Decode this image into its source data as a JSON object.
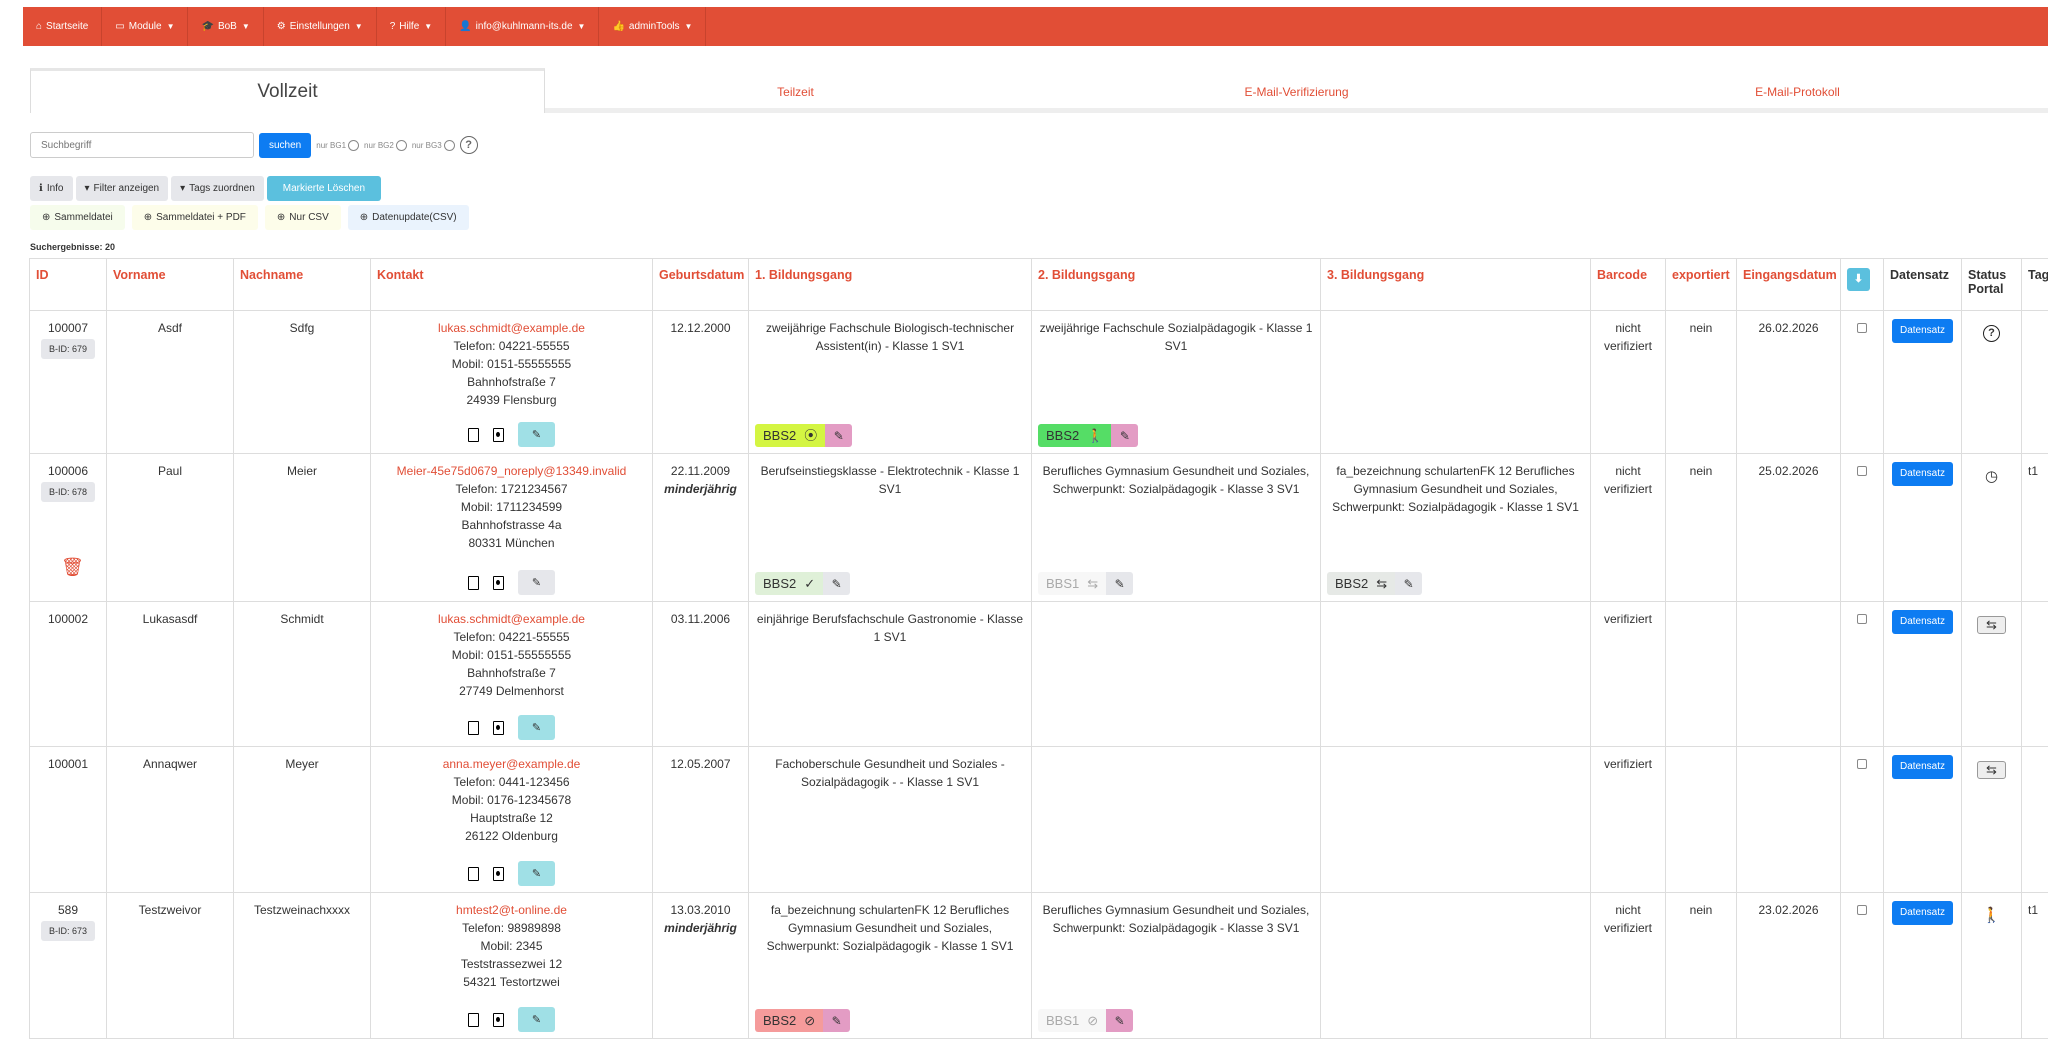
{
  "nav": [
    {
      "icon": "home-icon",
      "glyph": "⌂",
      "label": "Startseite",
      "caret": false
    },
    {
      "icon": "module-icon",
      "glyph": "▭",
      "label": "Module",
      "caret": true
    },
    {
      "icon": "graduation-cap-icon",
      "glyph": "🎓",
      "label": "BoB",
      "caret": true
    },
    {
      "icon": "gear-icon",
      "glyph": "⚙",
      "label": "Einstellungen",
      "caret": true
    },
    {
      "icon": "question-icon",
      "glyph": "?",
      "label": "Hilfe",
      "caret": true
    },
    {
      "icon": "user-icon",
      "glyph": "👤",
      "label": "info@kuhlmann-its.de",
      "caret": true
    },
    {
      "icon": "thumbs-up-icon",
      "glyph": "👍",
      "label": "adminTools",
      "caret": true
    }
  ],
  "tabs": [
    {
      "label": "Vollzeit",
      "active": true
    },
    {
      "label": "Teilzeit"
    },
    {
      "label": "E-Mail-Verifizierung"
    },
    {
      "label": "E-Mail-Protokoll"
    }
  ],
  "search": {
    "placeholder": "Suchbegriff",
    "button": "suchen",
    "radios": [
      "nur BG1",
      "nur BG2",
      "nur BG3"
    ],
    "help": "?"
  },
  "toolbar1": [
    {
      "label": "Info",
      "glyph": "ℹ",
      "bg": "#e6e7eb",
      "color": "#333"
    },
    {
      "label": "Filter anzeigen",
      "glyph": "▾",
      "bg": "#e6e7eb",
      "color": "#333"
    },
    {
      "label": "Tags zuordnen",
      "glyph": "▾",
      "bg": "#e6e7eb",
      "color": "#333"
    },
    {
      "label": "Markierte Löschen",
      "glyph": "",
      "bg": "#5bc0de",
      "color": "#fff"
    }
  ],
  "toolbar2": [
    {
      "label": "Sammeldatei",
      "glyph": "⊕",
      "bg": "#f6fcec"
    },
    {
      "label": "Sammeldatei + PDF",
      "glyph": "⊕",
      "bg": "#fdfdea"
    },
    {
      "label": "Nur CSV",
      "glyph": "⊕",
      "bg": "#fdfdea"
    },
    {
      "label": "Datenupdate(CSV)",
      "glyph": "⊕",
      "bg": "#eaf3fd"
    }
  ],
  "results": "Suchergebnisse: 20",
  "columns": [
    "ID",
    "Vorname",
    "Nachname",
    "Kontakt",
    "Geburtsdatum",
    "1. Bildungsgang",
    "2. Bildungsgang",
    "3. Bildungsgang",
    "Barcode",
    "exportiert",
    "Eingangsdatum",
    "",
    "Datensatz",
    "Status Portal",
    "Tags"
  ],
  "datensatz_label": "Datensatz",
  "rows": [
    {
      "id": "100007",
      "bid": "B-ID: 679",
      "vorname": "Asdf",
      "nachname": "Sdfg",
      "email": "lukas.schmidt@example.de",
      "telefon": "Telefon: 04221-55555",
      "mobil": "Mobil: 0151-55555555",
      "strasse": "Bahnhofstraße 7",
      "ort": "24939 Flensburg",
      "geburt": "12.12.2000",
      "minor": "",
      "edit_color": "#a0e0e6",
      "bg": [
        {
          "text": "zweijährige Fachschule Biologisch-technischer Assistent(in) - Klasse 1 SV1",
          "badge": "BBS2",
          "icon": "map-marker-icon",
          "glyph": "⦿",
          "bg": "#d4f542",
          "ed": "#e39cc4",
          "fg": "#333"
        },
        {
          "text": "zweijährige Fachschule Sozialpädagogik - Klasse 1 SV1",
          "badge": "BBS2",
          "icon": "person-icon",
          "glyph": "🚶",
          "bg": "#55dd66",
          "ed": "#e39cc4",
          "fg": "#333"
        },
        null
      ],
      "barcode": "nicht verifiziert",
      "exportiert": "nein",
      "eingang": "26.02.2026",
      "status": "question-icon",
      "status_glyph": "?",
      "tags": "",
      "trash": false
    },
    {
      "id": "100006",
      "bid": "B-ID: 678",
      "vorname": "Paul",
      "nachname": "Meier",
      "email": "Meier-45e75d0679_noreply@13349.invalid",
      "telefon": "Telefon: 1721234567",
      "mobil": "Mobil: 1711234599",
      "strasse": "Bahnhofstrasse 4a",
      "ort": "80331 München",
      "geburt": "22.11.2009",
      "minor": "minderjährig",
      "edit_color": "#e6e7eb",
      "bg": [
        {
          "text": "Berufseinstiegsklasse - Elektrotechnik - Klasse 1 SV1",
          "badge": "BBS2",
          "icon": "check-icon",
          "glyph": "✓",
          "bg": "#dff0d8",
          "ed": "#e6e7eb",
          "fg": "#333"
        },
        {
          "text": "Berufliches Gymnasium Gesundheit und Soziales, Schwerpunkt: Sozialpädagogik - Klasse 3 SV1",
          "badge": "BBS1",
          "icon": "swap-icon",
          "glyph": "⇆",
          "bg": "#f7f7f7",
          "ed": "#e6e7eb",
          "fg": "#aaa"
        },
        {
          "text": "fa_bezeichnung schulartenFK 12 Berufliches Gymnasium Gesundheit und Soziales, Schwerpunkt: Sozialpädagogik - Klasse 1 SV1",
          "badge": "BBS2",
          "icon": "swap-icon",
          "glyph": "⇆",
          "bg": "#e6e9e6",
          "ed": "#e6e7eb",
          "fg": "#333"
        }
      ],
      "barcode": "nicht verifiziert",
      "exportiert": "nein",
      "eingang": "25.02.2026",
      "status": "clock-icon",
      "status_glyph": "◷",
      "tags": "t1",
      "trash": true
    },
    {
      "id": "100002",
      "bid": "",
      "vorname": "Lukasasdf",
      "nachname": "Schmidt",
      "email": "lukas.schmidt@example.de",
      "telefon": "Telefon: 04221-55555",
      "mobil": "Mobil: 0151-55555555",
      "strasse": "Bahnhofstraße 7",
      "ort": "27749 Delmenhorst",
      "geburt": "03.11.2006",
      "minor": "",
      "edit_color": "#a0e0e6",
      "bg": [
        {
          "text": "einjährige Berufsfachschule Gastronomie - Klasse 1 SV1",
          "badge": ""
        },
        null,
        null
      ],
      "barcode": "verifiziert",
      "exportiert": "",
      "eingang": "",
      "status": "swap-button",
      "status_glyph": "⇆",
      "tags": "",
      "trash": false
    },
    {
      "id": "100001",
      "bid": "",
      "vorname": "Annaqwer",
      "nachname": "Meyer",
      "email": "anna.meyer@example.de",
      "telefon": "Telefon: 0441-123456",
      "mobil": "Mobil: 0176-12345678",
      "strasse": "Hauptstraße 12",
      "ort": "26122 Oldenburg",
      "geburt": "12.05.2007",
      "minor": "",
      "edit_color": "#a0e0e6",
      "bg": [
        {
          "text": "Fachoberschule Gesundheit und Soziales - Sozialpädagogik - - Klasse 1 SV1",
          "badge": ""
        },
        null,
        null
      ],
      "barcode": "verifiziert",
      "exportiert": "",
      "eingang": "",
      "status": "swap-button",
      "status_glyph": "⇆",
      "tags": "",
      "trash": false
    },
    {
      "id": "589",
      "bid": "B-ID: 673",
      "vorname": "Testzweivor",
      "nachname": "Testzweinachxxxx",
      "email": "hmtest2@t-online.de",
      "telefon": "Telefon: 98989898",
      "mobil": "Mobil: 2345",
      "strasse": "Teststrassezwei 12",
      "ort": "54321 Testortzwei",
      "geburt": "13.03.2010",
      "minor": "minderjährig",
      "edit_color": "#a0e0e6",
      "bg": [
        {
          "text": "fa_bezeichnung schulartenFK 12 Berufliches Gymnasium Gesundheit und Soziales, Schwerpunkt: Sozialpädagogik - Klasse 1 SV1",
          "badge": "BBS2",
          "icon": "ban-icon",
          "glyph": "⊘",
          "bg": "#f59b9b",
          "ed": "#e39cc4",
          "fg": "#333"
        },
        {
          "text": "Berufliches Gymnasium Gesundheit und Soziales, Schwerpunkt: Sozialpädagogik - Klasse 3 SV1",
          "badge": "BBS1",
          "icon": "ban-icon",
          "glyph": "⊘",
          "bg": "#f7f7f7",
          "ed": "#e39cc4",
          "fg": "#aaa"
        },
        null
      ],
      "barcode": "nicht verifiziert",
      "exportiert": "nein",
      "eingang": "23.02.2026",
      "status": "person-icon",
      "status_glyph": "🚶",
      "tags": "t1",
      "trash": false
    }
  ]
}
